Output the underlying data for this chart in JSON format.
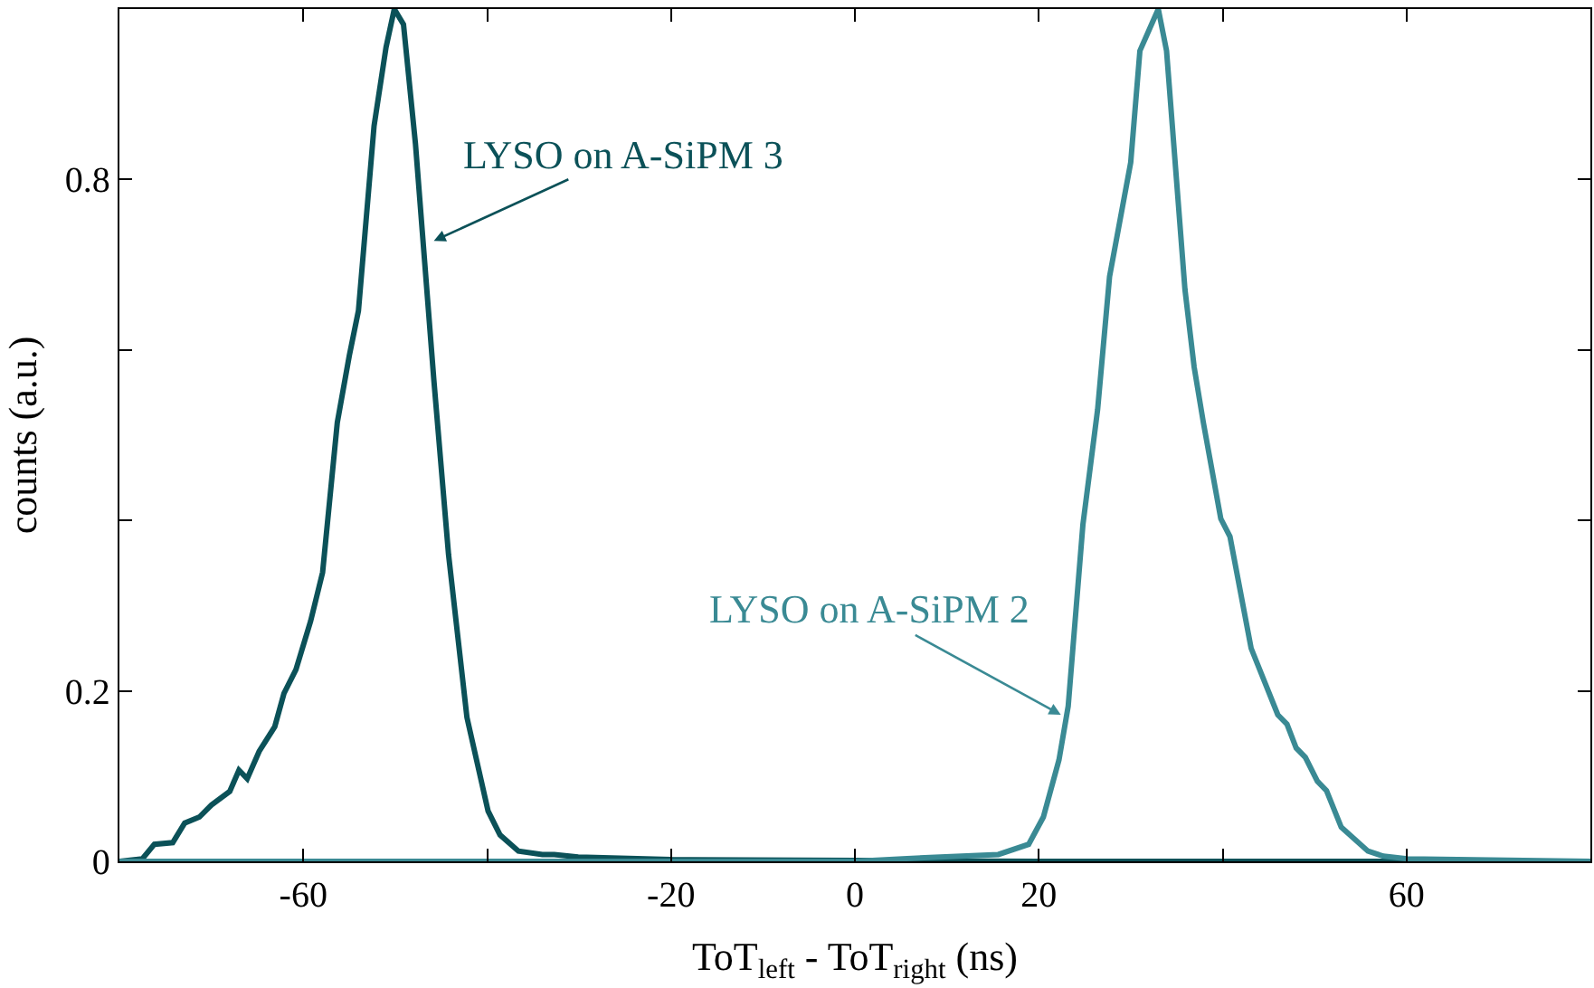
{
  "chart_data": {
    "type": "line",
    "xlabel": "ToT$_{left}$ - ToT$_{right}$ (ns)",
    "ylabel": "counts (a.u.)",
    "xlim": [
      -80,
      80
    ],
    "xticks": [
      -60,
      {
        "value": -40,
        "label": null
      },
      -20,
      0,
      20,
      {
        "value": 40,
        "label": null
      },
      60
    ],
    "ylim": [
      0,
      1
    ],
    "yticks": [
      0,
      0.2,
      {
        "value": 0.4,
        "label": null
      },
      {
        "value": 0.6,
        "label": null
      },
      0.8
    ],
    "line_style": "solid",
    "marker": "none",
    "series": [
      {
        "color": "#0b5158",
        "x": [
          -80,
          -77.5,
          -76.2,
          -74.2,
          -72.9,
          -71.3,
          -70,
          -68,
          -67,
          -66.1,
          -64.8,
          -63.1,
          -62.1,
          -60.8,
          -59.2,
          -57.9,
          -56.3,
          -55,
          -54,
          -52.3,
          -51,
          -50.1,
          -49.1,
          -47.8,
          -45.8,
          -44.2,
          -42.2,
          -39.9,
          -38.6,
          -36.6,
          -34,
          -32.7,
          -30.1,
          -20,
          0,
          20,
          40,
          60,
          80
        ],
        "values": [
          0,
          0.003,
          0.02,
          0.022,
          0.045,
          0.052,
          0.066,
          0.082,
          0.107,
          0.097,
          0.129,
          0.158,
          0.197,
          0.225,
          0.282,
          0.339,
          0.515,
          0.593,
          0.646,
          0.863,
          0.955,
          1.0,
          0.982,
          0.842,
          0.565,
          0.36,
          0.169,
          0.059,
          0.031,
          0.012,
          0.008,
          0.008,
          0.005,
          0.002,
          0.001,
          0,
          0,
          0,
          0
        ]
      },
      {
        "color": "#3a8a94",
        "x": [
          -80,
          -40,
          0,
          5.2,
          15.6,
          18.9,
          20.5,
          22.2,
          23.2,
          24.8,
          26.4,
          27.7,
          30,
          31,
          33,
          33.9,
          35.9,
          36.9,
          37.9,
          39.8,
          40.8,
          43.1,
          46,
          47,
          48,
          49,
          50.3,
          51.3,
          52.9,
          55.8,
          57.5,
          60.1,
          80
        ],
        "values": [
          0,
          0,
          0,
          0.003,
          0.008,
          0.02,
          0.052,
          0.119,
          0.182,
          0.395,
          0.53,
          0.686,
          0.82,
          0.951,
          1.0,
          0.951,
          0.671,
          0.58,
          0.515,
          0.402,
          0.381,
          0.25,
          0.172,
          0.161,
          0.133,
          0.122,
          0.094,
          0.083,
          0.04,
          0.012,
          0.006,
          0.003,
          0
        ]
      }
    ],
    "annotations": [
      {
        "text": "LYSO on A-SiPM 3",
        "x": -45.8,
        "y": 0.728
      },
      {
        "text": "LYSO on A-SiPM 2",
        "x": 22.4,
        "y": 0.172
      }
    ]
  }
}
